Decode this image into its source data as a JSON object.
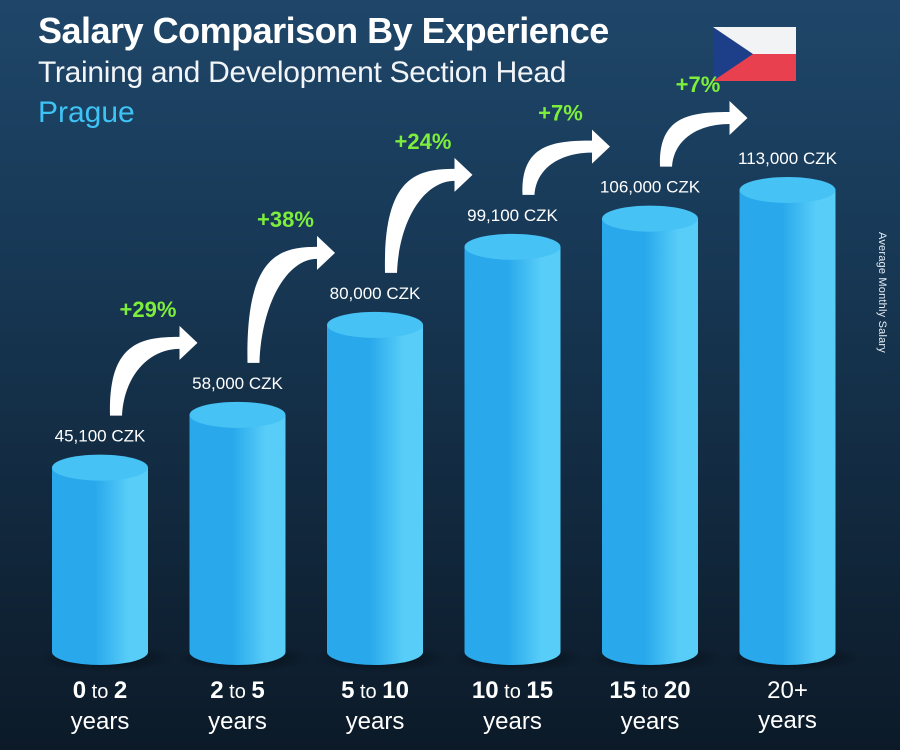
{
  "header": {
    "title": "Salary Comparison By Experience",
    "subtitle": "Training and Development Section Head",
    "city": "Prague"
  },
  "side_label": "Average Monthly Salary",
  "colors": {
    "bar": "#29a9ec",
    "bar_light": "#58cdf8",
    "bar_top": "#46c2f5",
    "increase": "#7dee3c",
    "flag_white": "#f2f3f5",
    "flag_red": "#e8404e",
    "flag_blue": "#1d3f8a"
  },
  "chart_data": {
    "type": "bar",
    "title": "Salary Comparison By Experience",
    "ylabel": "Average Monthly Salary",
    "unit": "CZK",
    "categories": [
      "0 to 2 years",
      "2 to 5 years",
      "5 to 10 years",
      "10 to 15 years",
      "15 to 20 years",
      "20+ years"
    ],
    "category_parts": [
      {
        "a": "0",
        "sep": "to",
        "b": "2",
        "line2": "years"
      },
      {
        "a": "2",
        "sep": "to",
        "b": "5",
        "line2": "years"
      },
      {
        "a": "5",
        "sep": "to",
        "b": "10",
        "line2": "years"
      },
      {
        "a": "10",
        "sep": "to",
        "b": "15",
        "line2": "years"
      },
      {
        "a": "15",
        "sep": "to",
        "b": "20",
        "line2": "years"
      },
      {
        "a": "20+",
        "sep": "",
        "b": "",
        "line2": "years"
      }
    ],
    "values": [
      45100,
      58000,
      80000,
      99100,
      106000,
      113000
    ],
    "value_labels": [
      "45,100 CZK",
      "58,000 CZK",
      "80,000 CZK",
      "99,100 CZK",
      "106,000 CZK",
      "113,000 CZK"
    ],
    "increases": [
      "+29%",
      "+38%",
      "+24%",
      "+7%",
      "+7%"
    ],
    "ylim": [
      0,
      120000
    ]
  }
}
